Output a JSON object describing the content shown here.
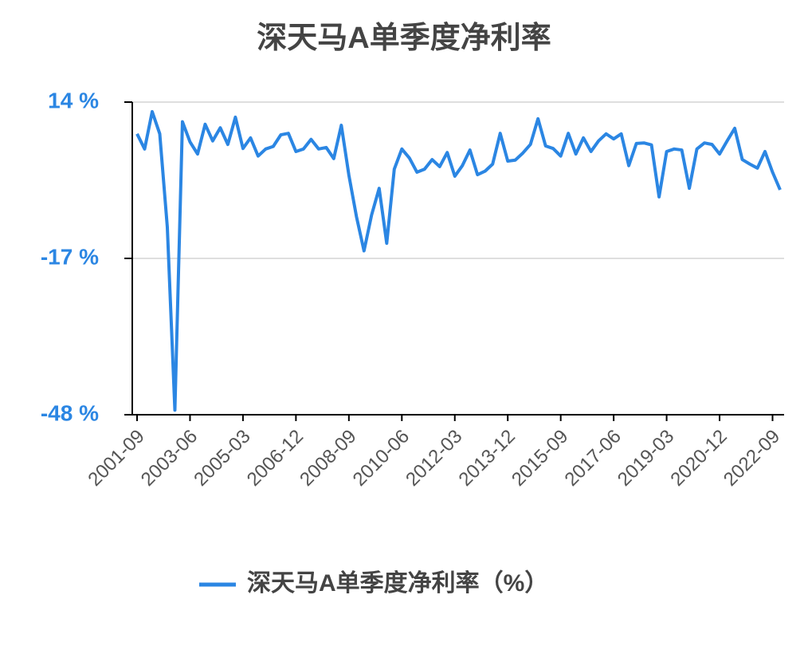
{
  "chart_data": {
    "type": "line",
    "title": "深天马A单季度净利率",
    "categories": [
      "2001-09",
      null,
      null,
      null,
      null,
      null,
      null,
      "2003-06",
      null,
      null,
      null,
      null,
      null,
      null,
      "2005-03",
      null,
      null,
      null,
      null,
      null,
      null,
      "2006-12",
      null,
      null,
      null,
      null,
      null,
      null,
      "2008-09",
      null,
      null,
      null,
      null,
      null,
      null,
      "2010-06",
      null,
      null,
      null,
      null,
      null,
      null,
      "2012-03",
      null,
      null,
      null,
      null,
      null,
      null,
      "2013-12",
      null,
      null,
      null,
      null,
      null,
      null,
      "2015-09",
      null,
      null,
      null,
      null,
      null,
      null,
      "2017-06",
      null,
      null,
      null,
      null,
      null,
      null,
      "2019-03",
      null,
      null,
      null,
      null,
      null,
      null,
      "2020-12",
      null,
      null,
      null,
      null,
      null,
      null,
      "2022-09",
      null
    ],
    "series": [
      {
        "name": "深天马A单季度净利率（%）",
        "color": "#2b86e3",
        "values": [
          7.7,
          4.7,
          12.1,
          7.7,
          -10.8,
          -47.1,
          10.1,
          6.1,
          3.7,
          9.6,
          6.3,
          8.9,
          5.6,
          11.0,
          4.8,
          6.9,
          3.3,
          4.7,
          5.2,
          7.5,
          7.8,
          4.2,
          4.7,
          6.6,
          4.7,
          5.0,
          2.8,
          9.4,
          -0.5,
          -8.7,
          -15.5,
          -8.4,
          -3.1,
          -14.0,
          0.7,
          4.7,
          2.9,
          0.1,
          0.7,
          2.6,
          1.2,
          4.0,
          -0.7,
          1.4,
          4.5,
          -0.4,
          0.3,
          1.7,
          7.8,
          2.3,
          2.5,
          3.9,
          5.6,
          10.7,
          5.3,
          4.8,
          3.3,
          7.8,
          3.7,
          6.9,
          4.2,
          6.3,
          7.7,
          6.7,
          7.7,
          1.4,
          5.8,
          5.9,
          5.5,
          -4.8,
          4.2,
          4.7,
          4.5,
          -3.1,
          4.7,
          5.9,
          5.6,
          3.7,
          6.3,
          8.8,
          2.6,
          1.7,
          0.9,
          4.2,
          0.1,
          -3.4
        ]
      }
    ],
    "ylim": [
      -48,
      14
    ],
    "yticks": [
      {
        "value": 14,
        "label": "14 %"
      },
      {
        "value": -17,
        "label": "-17 %"
      },
      {
        "value": -48,
        "label": "-48 %"
      }
    ],
    "grid": true
  }
}
